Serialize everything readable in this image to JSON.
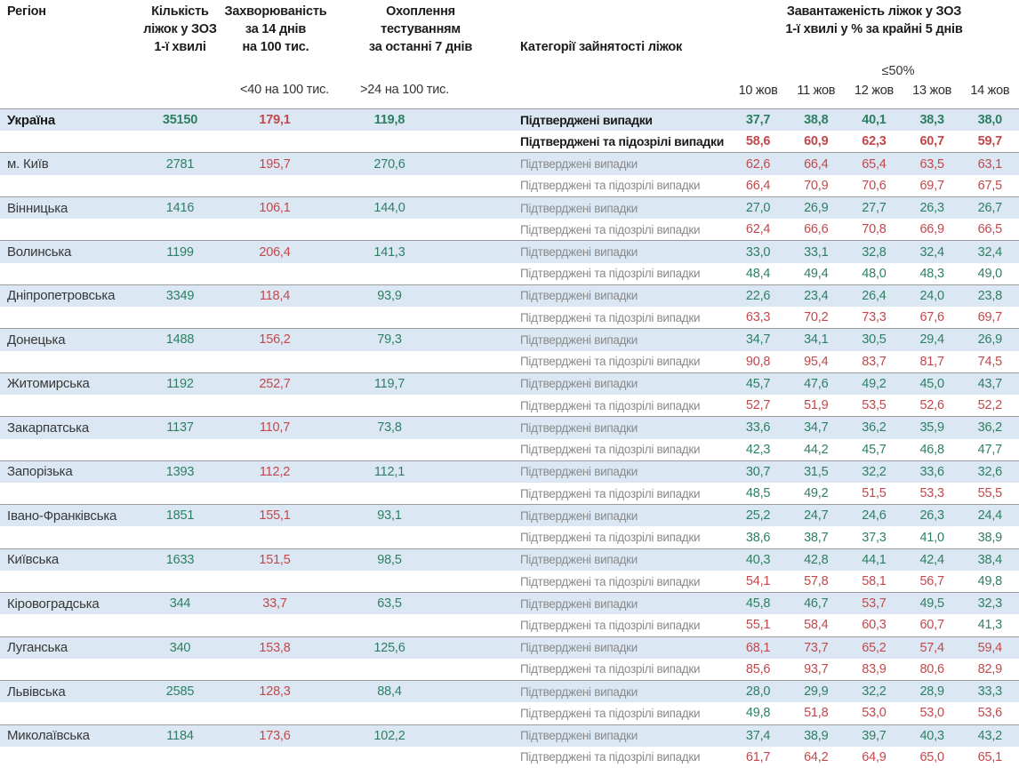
{
  "colors": {
    "green": "#2e7f62",
    "red": "#c2484c",
    "row_highlight_blue": "#dbe8f4",
    "border_gray": "#9c9c9c",
    "category_gray": "#8a8a8a"
  },
  "chart_data": {
    "type": "table",
    "header": {
      "region": "Регіон",
      "beds": "Кількість\nліжок у ЗОЗ\n1-ї хвилі",
      "incidence": "Захворюваність\nза 14 днів\nна 100 тис.",
      "testing": "Охоплення\nтестуванням\nза останні 7 днів",
      "category": "Категорії зайнятості ліжок",
      "load": "Завантаженість ліжок у ЗОЗ\n1-ї хвилі у % за крайні 5 днів",
      "incidence_threshold": "<40 на 100 тис.",
      "testing_threshold": ">24 на 100 тис.",
      "occupancy_threshold": "≤50%",
      "dates": [
        "10 жов",
        "11 жов",
        "12 жов",
        "13 жов",
        "14 жов"
      ]
    },
    "categories": [
      "Підтверджені випадки",
      "Підтверджені та підозрілі випадки"
    ],
    "occupancy_red_above_percent": 50,
    "rows": [
      {
        "region": "Україна",
        "beds": "35150",
        "incidence": "179,1",
        "testing": "119,8",
        "bold": true,
        "confirmed": [
          "37,7",
          "38,8",
          "40,1",
          "38,3",
          "38,0"
        ],
        "confirmed_suspected": [
          "58,6",
          "60,9",
          "62,3",
          "60,7",
          "59,7"
        ]
      },
      {
        "region": "м. Київ",
        "beds": "2781",
        "incidence": "195,7",
        "testing": "270,6",
        "bold": false,
        "confirmed": [
          "62,6",
          "66,4",
          "65,4",
          "63,5",
          "63,1"
        ],
        "confirmed_suspected": [
          "66,4",
          "70,9",
          "70,6",
          "69,7",
          "67,5"
        ]
      },
      {
        "region": "Вінницька",
        "beds": "1416",
        "incidence": "106,1",
        "testing": "144,0",
        "bold": false,
        "confirmed": [
          "27,0",
          "26,9",
          "27,7",
          "26,3",
          "26,7"
        ],
        "confirmed_suspected": [
          "62,4",
          "66,6",
          "70,8",
          "66,9",
          "66,5"
        ]
      },
      {
        "region": "Волинська",
        "beds": "1199",
        "incidence": "206,4",
        "testing": "141,3",
        "bold": false,
        "confirmed": [
          "33,0",
          "33,1",
          "32,8",
          "32,4",
          "32,4"
        ],
        "confirmed_suspected": [
          "48,4",
          "49,4",
          "48,0",
          "48,3",
          "49,0"
        ]
      },
      {
        "region": "Дніпропетровська",
        "beds": "3349",
        "incidence": "118,4",
        "testing": "93,9",
        "bold": false,
        "confirmed": [
          "22,6",
          "23,4",
          "26,4",
          "24,0",
          "23,8"
        ],
        "confirmed_suspected": [
          "63,3",
          "70,2",
          "73,3",
          "67,6",
          "69,7"
        ]
      },
      {
        "region": "Донецька",
        "beds": "1488",
        "incidence": "156,2",
        "testing": "79,3",
        "bold": false,
        "confirmed": [
          "34,7",
          "34,1",
          "30,5",
          "29,4",
          "26,9"
        ],
        "confirmed_suspected": [
          "90,8",
          "95,4",
          "83,7",
          "81,7",
          "74,5"
        ]
      },
      {
        "region": "Житомирська",
        "beds": "1192",
        "incidence": "252,7",
        "testing": "119,7",
        "bold": false,
        "confirmed": [
          "45,7",
          "47,6",
          "49,2",
          "45,0",
          "43,7"
        ],
        "confirmed_suspected": [
          "52,7",
          "51,9",
          "53,5",
          "52,6",
          "52,2"
        ]
      },
      {
        "region": "Закарпатська",
        "beds": "1137",
        "incidence": "110,7",
        "testing": "73,8",
        "bold": false,
        "confirmed": [
          "33,6",
          "34,7",
          "36,2",
          "35,9",
          "36,2"
        ],
        "confirmed_suspected": [
          "42,3",
          "44,2",
          "45,7",
          "46,8",
          "47,7"
        ]
      },
      {
        "region": "Запорізька",
        "beds": "1393",
        "incidence": "112,2",
        "testing": "112,1",
        "bold": false,
        "confirmed": [
          "30,7",
          "31,5",
          "32,2",
          "33,6",
          "32,6"
        ],
        "confirmed_suspected": [
          "48,5",
          "49,2",
          "51,5",
          "53,3",
          "55,5"
        ]
      },
      {
        "region": "Івано-Франківська",
        "beds": "1851",
        "incidence": "155,1",
        "testing": "93,1",
        "bold": false,
        "confirmed": [
          "25,2",
          "24,7",
          "24,6",
          "26,3",
          "24,4"
        ],
        "confirmed_suspected": [
          "38,6",
          "38,7",
          "37,3",
          "41,0",
          "38,9"
        ]
      },
      {
        "region": "Київська",
        "beds": "1633",
        "incidence": "151,5",
        "testing": "98,5",
        "bold": false,
        "confirmed": [
          "40,3",
          "42,8",
          "44,1",
          "42,4",
          "38,4"
        ],
        "confirmed_suspected": [
          "54,1",
          "57,8",
          "58,1",
          "56,7",
          "49,8"
        ]
      },
      {
        "region": "Кіровоградська",
        "beds": "344",
        "incidence": "33,7",
        "testing": "63,5",
        "bold": false,
        "confirmed": [
          "45,8",
          "46,7",
          "53,7",
          "49,5",
          "32,3"
        ],
        "confirmed_suspected": [
          "55,1",
          "58,4",
          "60,3",
          "60,7",
          "41,3"
        ]
      },
      {
        "region": "Луганська",
        "beds": "340",
        "incidence": "153,8",
        "testing": "125,6",
        "bold": false,
        "confirmed": [
          "68,1",
          "73,7",
          "65,2",
          "57,4",
          "59,4"
        ],
        "confirmed_suspected": [
          "85,6",
          "93,7",
          "83,9",
          "80,6",
          "82,9"
        ]
      },
      {
        "region": "Львівська",
        "beds": "2585",
        "incidence": "128,3",
        "testing": "88,4",
        "bold": false,
        "confirmed": [
          "28,0",
          "29,9",
          "32,2",
          "28,9",
          "33,3"
        ],
        "confirmed_suspected": [
          "49,8",
          "51,8",
          "53,0",
          "53,0",
          "53,6"
        ]
      },
      {
        "region": "Миколаївська",
        "beds": "1184",
        "incidence": "173,6",
        "testing": "102,2",
        "bold": false,
        "confirmed": [
          "37,4",
          "38,9",
          "39,7",
          "40,3",
          "43,2"
        ],
        "confirmed_suspected": [
          "61,7",
          "64,2",
          "64,9",
          "65,0",
          "65,1"
        ]
      }
    ]
  }
}
